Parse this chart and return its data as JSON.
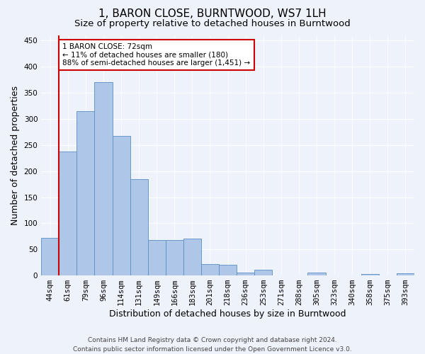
{
  "title": "1, BARON CLOSE, BURNTWOOD, WS7 1LH",
  "subtitle": "Size of property relative to detached houses in Burntwood",
  "xlabel": "Distribution of detached houses by size in Burntwood",
  "ylabel": "Number of detached properties",
  "categories": [
    "44sqm",
    "61sqm",
    "79sqm",
    "96sqm",
    "114sqm",
    "131sqm",
    "149sqm",
    "166sqm",
    "183sqm",
    "201sqm",
    "218sqm",
    "236sqm",
    "253sqm",
    "271sqm",
    "288sqm",
    "305sqm",
    "323sqm",
    "340sqm",
    "358sqm",
    "375sqm",
    "393sqm"
  ],
  "values": [
    72,
    238,
    315,
    370,
    268,
    184,
    68,
    68,
    70,
    22,
    20,
    6,
    11,
    0,
    0,
    5,
    0,
    0,
    3,
    0,
    4
  ],
  "bar_color": "#aec6e8",
  "bar_edge_color": "#5a8fc2",
  "vline_color": "#cc0000",
  "annotation_text": "1 BARON CLOSE: 72sqm\n← 11% of detached houses are smaller (180)\n88% of semi-detached houses are larger (1,451) →",
  "annotation_box_color": "#ffffff",
  "annotation_box_edge": "#cc0000",
  "ylim": [
    0,
    460
  ],
  "yticks": [
    0,
    50,
    100,
    150,
    200,
    250,
    300,
    350,
    400,
    450
  ],
  "footer": "Contains HM Land Registry data © Crown copyright and database right 2024.\nContains public sector information licensed under the Open Government Licence v3.0.",
  "bg_color": "#eef2fa",
  "grid_color": "#ffffff",
  "title_fontsize": 11,
  "subtitle_fontsize": 9.5,
  "axis_label_fontsize": 9,
  "tick_fontsize": 7.5,
  "footer_fontsize": 6.5
}
